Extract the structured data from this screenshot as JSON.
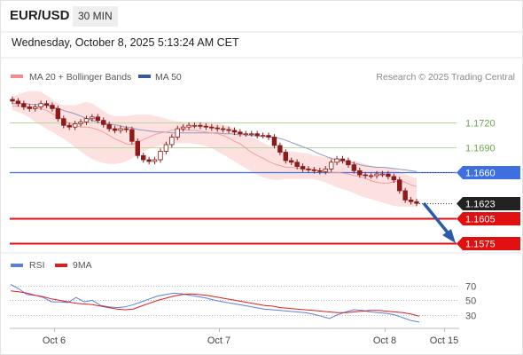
{
  "header": {
    "symbol": "EUR/USD",
    "interval": "30 MIN",
    "datetime": "Wednesday, October 8, 2025 5:13:24 AM CET"
  },
  "legend_main": [
    {
      "label": "MA 20 + Bollinger Bands",
      "color": "#f28b8b"
    },
    {
      "label": "MA 50",
      "color": "#3b5998"
    }
  ],
  "legend_rsi": [
    {
      "label": "RSI",
      "color": "#5b7fde"
    },
    {
      "label": "9MA",
      "color": "#e01e1e"
    }
  ],
  "credit": "Research © 2025 Trading Central",
  "colors": {
    "candle": "#8c1a1a",
    "pivot": "#3d6fe0",
    "resistance": "#b5d99c",
    "support": "#e01010",
    "arrow": "#2a5aa8",
    "band_fill": "#fde0e0",
    "ma20": "#f0a0a0",
    "ma50": "#9098c0",
    "last_price_bg": "#222222"
  },
  "chart_data": [
    {
      "type": "candlestick",
      "title": "EUR/USD 30 MIN",
      "x_ticks": [
        "Oct 6",
        "Oct 7",
        "Oct 8",
        "Oct 15"
      ],
      "levels": [
        {
          "label": "1.1720",
          "value": 1.172,
          "kind": "resistance"
        },
        {
          "label": "1.1690",
          "value": 1.169,
          "kind": "resistance"
        },
        {
          "label": "1.1660",
          "value": 1.166,
          "kind": "pivot"
        },
        {
          "label": "1.1605",
          "value": 1.1605,
          "kind": "support"
        },
        {
          "label": "1.1575",
          "value": 1.1575,
          "kind": "support"
        }
      ],
      "last_price": {
        "label": "1.1623",
        "value": 1.1623
      },
      "ylim": [
        1.1567,
        1.1765
      ],
      "series": [
        {
          "name": "Price",
          "close": [
            1.1745,
            1.1742,
            1.1738,
            1.1736,
            1.1738,
            1.1742,
            1.174,
            1.1736,
            1.1724,
            1.1716,
            1.1714,
            1.1718,
            1.172,
            1.1724,
            1.1726,
            1.1722,
            1.1717,
            1.1712,
            1.171,
            1.1712,
            1.1711,
            1.1697,
            1.168,
            1.1675,
            1.1673,
            1.1675,
            1.1685,
            1.1693,
            1.1702,
            1.1712,
            1.1714,
            1.1716,
            1.1716,
            1.1715,
            1.1714,
            1.1713,
            1.1712,
            1.1711,
            1.171,
            1.1708,
            1.1706,
            1.1706,
            1.1706,
            1.1704,
            1.1704,
            1.1702,
            1.1692,
            1.1684,
            1.1674,
            1.1672,
            1.1667,
            1.1664,
            1.1663,
            1.1662,
            1.1661,
            1.1664,
            1.1672,
            1.1676,
            1.1674,
            1.1669,
            1.1662,
            1.1657,
            1.1656,
            1.1656,
            1.1658,
            1.1658,
            1.1655,
            1.1651,
            1.1638,
            1.1627,
            1.1625,
            1.1623
          ]
        },
        {
          "name": "MA 20",
          "values": [
            1.1739,
            1.1739,
            1.1739,
            1.1738,
            1.1737,
            1.1736,
            1.1734,
            1.173,
            1.1726,
            1.1723,
            1.1718,
            1.1716,
            1.1714,
            1.1714,
            1.1713,
            1.1711,
            1.1708,
            1.1704,
            1.17,
            1.1697,
            1.1694,
            1.1693,
            1.1696,
            1.1699,
            1.1702,
            1.1705,
            1.1707,
            1.1708,
            1.171,
            1.1711,
            1.1711,
            1.171,
            1.171,
            1.1709,
            1.1708,
            1.1707,
            1.1706,
            1.1704,
            1.1701,
            1.1697,
            1.1694,
            1.1689,
            1.1684,
            1.168,
            1.1677,
            1.1673,
            1.167,
            1.1668,
            1.1666,
            1.1666,
            1.1665,
            1.1664,
            1.1664,
            1.1663,
            1.1662,
            1.1661,
            1.166,
            1.166,
            1.1659,
            1.1658,
            1.1656,
            1.1655,
            1.1653,
            1.165,
            1.1648,
            1.1647,
            1.1647,
            1.1649,
            1.165,
            1.1648,
            1.1645,
            1.1643
          ]
        },
        {
          "name": "MA 50",
          "values": [
            1.1742,
            1.1742,
            1.1742,
            1.1741,
            1.1741,
            1.174,
            1.1738,
            1.1736,
            1.1733,
            1.1731,
            1.1728,
            1.1725,
            1.1722,
            1.172,
            1.1718,
            1.1717,
            1.1716,
            1.1714,
            1.1713,
            1.1711,
            1.171,
            1.1709,
            1.1708,
            1.1708,
            1.1707,
            1.1707,
            1.1707,
            1.1707,
            1.1707,
            1.1707,
            1.1707,
            1.1707,
            1.1706,
            1.1706,
            1.1705,
            1.1705,
            1.1704,
            1.1703,
            1.1703,
            1.1702,
            1.1701,
            1.1699,
            1.1696,
            1.1693,
            1.169,
            1.1687,
            1.1683,
            1.168,
            1.1677,
            1.1674,
            1.1673,
            1.1672,
            1.167,
            1.1668,
            1.1667,
            1.1666,
            1.1666,
            1.1665,
            1.1664,
            1.1663,
            1.1662,
            1.1661
          ]
        },
        {
          "name": "BB upper",
          "values": [
            1.175,
            1.1753,
            1.1755,
            1.1757,
            1.1757,
            1.1756,
            1.1752,
            1.1747,
            1.1742,
            1.174,
            1.174,
            1.174,
            1.1742,
            1.1744,
            1.1742,
            1.1738,
            1.1733,
            1.1729,
            1.1727,
            1.1727,
            1.1727,
            1.1728,
            1.1729,
            1.1729,
            1.1729,
            1.1727,
            1.1726,
            1.1724,
            1.1722,
            1.1721,
            1.172,
            1.172,
            1.172,
            1.172,
            1.172,
            1.1719,
            1.1719,
            1.1717,
            1.1715,
            1.1712,
            1.1708,
            1.1705,
            1.1702,
            1.1699,
            1.1695,
            1.1692,
            1.1689,
            1.1687,
            1.1685,
            1.1685,
            1.1684,
            1.1683,
            1.1682,
            1.168,
            1.1679,
            1.1678,
            1.1678,
            1.1677,
            1.1676,
            1.1674,
            1.1674,
            1.1672,
            1.167,
            1.1668,
            1.1667,
            1.1666,
            1.1666,
            1.1664,
            1.1661,
            1.1658,
            1.1655,
            1.1653
          ]
        },
        {
          "name": "BB lower",
          "values": [
            1.1734,
            1.1732,
            1.1729,
            1.1725,
            1.172,
            1.1716,
            1.1712,
            1.1708,
            1.1704,
            1.17,
            1.1695,
            1.169,
            1.1685,
            1.168,
            1.1676,
            1.1673,
            1.1671,
            1.167,
            1.167,
            1.1671,
            1.1673,
            1.1677,
            1.1681,
            1.1685,
            1.1688,
            1.169,
            1.1692,
            1.1693,
            1.1694,
            1.1695,
            1.1695,
            1.1695,
            1.1694,
            1.1693,
            1.1691,
            1.1689,
            1.1685,
            1.1681,
            1.1677,
            1.1673,
            1.1669,
            1.1665,
            1.1661,
            1.1657,
            1.1654,
            1.1652,
            1.1651,
            1.1651,
            1.1652,
            1.1652,
            1.1652,
            1.1652,
            1.1652,
            1.1652,
            1.165,
            1.1648,
            1.1645,
            1.1642,
            1.164,
            1.1638,
            1.1635,
            1.1632,
            1.163,
            1.1628,
            1.1626,
            1.1624,
            1.1622,
            1.162,
            1.1619,
            1.1619,
            1.1619,
            1.1619
          ]
        }
      ]
    },
    {
      "type": "line",
      "title": "RSI",
      "y_ticks": [
        "70",
        "50",
        "30"
      ],
      "ylim": [
        10,
        80
      ],
      "series": [
        {
          "name": "RSI",
          "values": [
            72,
            66,
            58,
            57,
            54,
            48,
            48,
            47,
            54,
            48,
            50,
            43,
            41,
            40,
            41,
            44,
            48,
            52,
            56,
            58,
            60,
            59,
            57,
            55,
            53,
            50,
            48,
            46,
            44,
            42,
            40,
            38,
            37,
            36,
            35,
            34,
            33,
            31,
            28,
            25,
            30,
            34,
            37,
            36,
            34,
            33,
            32,
            30,
            26,
            22,
            20
          ]
        },
        {
          "name": "9MA",
          "values": [
            63,
            62,
            60,
            57,
            55,
            52,
            50,
            48,
            46,
            45,
            44,
            42,
            40,
            38,
            37,
            38,
            42,
            46,
            50,
            53,
            56,
            58,
            59,
            58,
            57,
            55,
            53,
            51,
            49,
            47,
            45,
            43,
            42,
            40,
            39,
            38,
            37,
            36,
            35,
            34,
            33,
            33,
            34,
            35,
            36,
            36,
            35,
            34,
            33,
            31,
            28
          ]
        }
      ]
    }
  ]
}
